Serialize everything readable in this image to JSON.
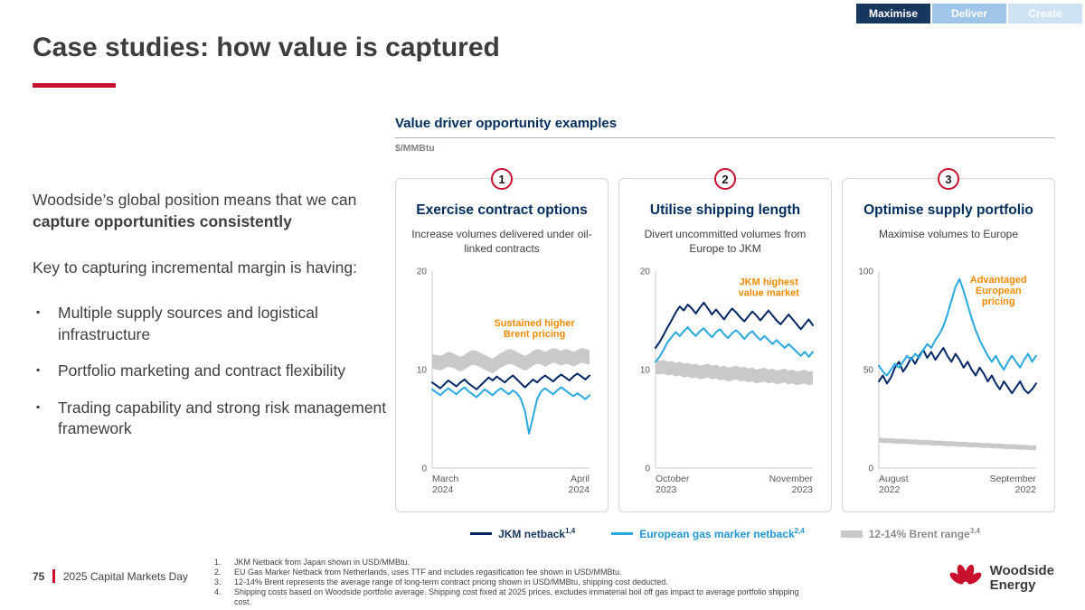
{
  "tabs": [
    {
      "label": "Maximise",
      "active": true
    },
    {
      "label": "Deliver",
      "active": false
    },
    {
      "label": "Create",
      "active": false
    }
  ],
  "title": "Case studies: how value is captured",
  "colors": {
    "accent_red": "#c8102e",
    "navy": "#002664",
    "light_blue": "#29a8e0",
    "band_gray": "#c9c9c9",
    "orange": "#f18a00"
  },
  "left_panel": {
    "intro_normal": "Woodside’s global position means that we can ",
    "intro_bold": "capture opportunities consistently",
    "key_text": "Key to capturing incremental margin is having:",
    "bullet": "▪",
    "bullets": [
      "Multiple supply sources and logistical infrastructure",
      "Portfolio marketing and contract flexibility",
      "Trading capability and strong risk management framework"
    ]
  },
  "right_panel": {
    "heading": "Value driver opportunity examples",
    "unit": "$/MMBtu"
  },
  "chart_data": [
    {
      "type": "line",
      "number": "1",
      "title": "Exercise contract options",
      "subtitle": "Increase volumes delivered under oil-linked contracts",
      "ylim": [
        0,
        20
      ],
      "yticks": [
        0,
        10,
        20
      ],
      "x_labels": [
        "March\n2024",
        "April\n2024"
      ],
      "annotation": {
        "text": "Sustained higher\nBrent pricing",
        "x": 65,
        "y": 28,
        "color": "#f18a00"
      },
      "series": [
        {
          "name": "JKM netback",
          "color": "#002664",
          "width": 2,
          "values": [
            8.7,
            8.4,
            8.1,
            8.5,
            8.9,
            8.6,
            8.3,
            8.7,
            9.0,
            8.6,
            8.3,
            8.0,
            8.4,
            8.8,
            9.2,
            8.9,
            9.3,
            9.0,
            8.7,
            9.1,
            9.4,
            9.0,
            8.6,
            8.2,
            8.6,
            9.0,
            8.7,
            9.1,
            9.4,
            9.1,
            8.8,
            9.2,
            9.5,
            9.2,
            8.9,
            9.3,
            9.6,
            9.3,
            9.0,
            9.4
          ]
        },
        {
          "name": "European gas marker netback",
          "color": "#29a8e0",
          "width": 2,
          "values": [
            8.0,
            7.7,
            7.4,
            7.8,
            8.1,
            7.8,
            7.5,
            7.9,
            8.2,
            7.8,
            7.5,
            7.2,
            7.6,
            8.0,
            7.7,
            7.4,
            7.8,
            8.1,
            7.8,
            7.5,
            7.9,
            7.6,
            7.0,
            5.8,
            3.5,
            5.2,
            7.0,
            7.8,
            8.1,
            7.8,
            7.5,
            7.9,
            8.2,
            7.9,
            7.6,
            7.3,
            7.6,
            7.3,
            7.0,
            7.4
          ]
        }
      ],
      "band": {
        "name": "12-14% Brent range",
        "color": "#c9c9c9",
        "upper": [
          11.6,
          11.5,
          11.4,
          11.6,
          11.8,
          11.7,
          11.5,
          11.3,
          11.5,
          11.8,
          12.0,
          11.9,
          11.7,
          11.5,
          11.3,
          11.1,
          11.4,
          11.7,
          11.9,
          12.1,
          12.0,
          11.8,
          11.6,
          11.4,
          11.6,
          11.9,
          12.1,
          12.0,
          11.8,
          12.0,
          12.2,
          12.1,
          11.9,
          12.1,
          12.0,
          11.8,
          12.0,
          12.2,
          12.1,
          12.0
        ],
        "lower": [
          10.1,
          10.0,
          9.9,
          10.1,
          10.3,
          10.2,
          10.0,
          9.8,
          10.0,
          10.3,
          10.5,
          10.4,
          10.2,
          10.0,
          9.8,
          9.6,
          9.9,
          10.2,
          10.4,
          10.6,
          10.5,
          10.3,
          10.1,
          9.9,
          10.1,
          10.4,
          10.6,
          10.5,
          10.3,
          10.5,
          10.7,
          10.6,
          10.4,
          10.6,
          10.5,
          10.3,
          10.5,
          10.7,
          10.6,
          10.5
        ]
      }
    },
    {
      "type": "line",
      "number": "2",
      "title": "Utilise shipping length",
      "subtitle": "Divert uncommitted volumes from Europe to JKM",
      "ylim": [
        0,
        20
      ],
      "yticks": [
        0,
        10,
        20
      ],
      "x_labels": [
        "October\n2023",
        "November\n2023"
      ],
      "annotation": {
        "text": "JKM highest\nvalue market",
        "x": 72,
        "y": 7,
        "color": "#f18a00"
      },
      "series": [
        {
          "name": "JKM netback",
          "color": "#002664",
          "width": 2,
          "values": [
            12.2,
            12.8,
            13.5,
            14.3,
            15.0,
            15.8,
            16.4,
            16.0,
            16.6,
            16.2,
            15.7,
            16.3,
            16.8,
            16.2,
            15.6,
            16.1,
            15.6,
            15.1,
            15.7,
            16.2,
            15.8,
            15.3,
            14.9,
            15.4,
            15.9,
            15.5,
            15.0,
            15.5,
            16.0,
            15.5,
            15.0,
            14.6,
            15.1,
            15.6,
            15.1,
            14.6,
            14.1,
            14.6,
            15.1,
            14.5
          ]
        },
        {
          "name": "European gas marker netback",
          "color": "#29a8e0",
          "width": 2,
          "values": [
            10.8,
            11.3,
            12.0,
            12.8,
            13.3,
            13.8,
            13.4,
            13.9,
            14.3,
            13.8,
            13.4,
            13.9,
            14.2,
            13.7,
            13.3,
            13.8,
            14.1,
            13.6,
            13.2,
            13.7,
            14.0,
            13.6,
            13.1,
            13.6,
            13.9,
            13.4,
            13.0,
            13.4,
            13.0,
            12.6,
            13.0,
            12.6,
            12.2,
            12.6,
            12.2,
            11.8,
            11.4,
            11.8,
            11.3,
            11.8
          ]
        }
      ],
      "band": {
        "name": "12-14% Brent range",
        "color": "#c9c9c9",
        "upper": [
          11.0,
          10.9,
          11.0,
          10.8,
          10.9,
          10.7,
          10.8,
          10.6,
          10.7,
          10.5,
          10.6,
          10.4,
          10.5,
          10.6,
          10.4,
          10.5,
          10.3,
          10.4,
          10.2,
          10.3,
          10.4,
          10.2,
          10.3,
          10.1,
          10.2,
          10.0,
          10.1,
          10.2,
          10.0,
          10.1,
          9.9,
          10.0,
          10.1,
          9.9,
          10.0,
          9.8,
          9.9,
          10.0,
          9.8,
          9.9
        ],
        "lower": [
          9.6,
          9.5,
          9.6,
          9.4,
          9.5,
          9.3,
          9.4,
          9.2,
          9.3,
          9.1,
          9.2,
          9.0,
          9.1,
          9.2,
          9.0,
          9.1,
          8.9,
          9.0,
          8.8,
          8.9,
          9.0,
          8.8,
          8.9,
          8.7,
          8.8,
          8.6,
          8.7,
          8.8,
          8.6,
          8.7,
          8.5,
          8.6,
          8.7,
          8.5,
          8.6,
          8.4,
          8.5,
          8.6,
          8.4,
          8.5
        ]
      }
    },
    {
      "type": "line",
      "number": "3",
      "title": "Optimise supply portfolio",
      "subtitle": "Maximise volumes to Europe",
      "ylim": [
        0,
        100
      ],
      "yticks": [
        0,
        50,
        100
      ],
      "x_labels": [
        "August\n2022",
        "September\n2022"
      ],
      "annotation": {
        "text": "Advantaged\nEuropean\npricing",
        "x": 76,
        "y": 6,
        "color": "#f18a00"
      },
      "series": [
        {
          "name": "JKM netback",
          "color": "#002664",
          "width": 2,
          "values": [
            44,
            47,
            43,
            46,
            51,
            54,
            49,
            52,
            56,
            53,
            57,
            60,
            56,
            59,
            55,
            58,
            61,
            57,
            54,
            58,
            55,
            51,
            54,
            50,
            47,
            51,
            48,
            44,
            47,
            43,
            40,
            44,
            41,
            38,
            41,
            44,
            40,
            38,
            40,
            43
          ]
        },
        {
          "name": "European gas marker netback",
          "color": "#29a8e0",
          "width": 2,
          "values": [
            52,
            49,
            47,
            50,
            53,
            51,
            54,
            57,
            55,
            58,
            56,
            60,
            63,
            61,
            65,
            68,
            72,
            78,
            85,
            92,
            96,
            90,
            83,
            76,
            70,
            65,
            61,
            57,
            54,
            57,
            53,
            50,
            54,
            57,
            54,
            51,
            55,
            58,
            54,
            57
          ]
        }
      ],
      "band": {
        "name": "12-14% Brent range",
        "color": "#c9c9c9",
        "upper": [
          15.5,
          15.3,
          15.1,
          15.2,
          15.0,
          14.8,
          14.9,
          14.7,
          14.5,
          14.6,
          14.4,
          14.2,
          14.3,
          14.1,
          13.9,
          14.0,
          13.8,
          13.6,
          13.7,
          13.5,
          13.3,
          13.4,
          13.2,
          13.0,
          13.1,
          12.9,
          12.7,
          12.8,
          12.6,
          12.4,
          12.5,
          12.3,
          12.1,
          12.2,
          12.0,
          11.8,
          11.9,
          11.7,
          11.5,
          11.6
        ],
        "lower": [
          13.0,
          12.8,
          12.6,
          12.7,
          12.5,
          12.3,
          12.4,
          12.2,
          12.0,
          12.1,
          11.9,
          11.7,
          11.8,
          11.6,
          11.4,
          11.5,
          11.3,
          11.1,
          11.2,
          11.0,
          10.8,
          10.9,
          10.7,
          10.5,
          10.6,
          10.4,
          10.2,
          10.3,
          10.1,
          9.9,
          10.0,
          9.8,
          9.6,
          9.7,
          9.5,
          9.3,
          9.4,
          9.2,
          9.0,
          9.1
        ]
      }
    }
  ],
  "legend": [
    {
      "label": "JKM netback",
      "sup": "1,4",
      "color": "#002664",
      "swatch": "line"
    },
    {
      "label": "European gas marker netback",
      "sup": "2,4",
      "color": "#29a8e0",
      "swatch": "line"
    },
    {
      "label": "12-14% Brent range",
      "sup": "3,4",
      "color": "#8c8c8c",
      "swatch": "block"
    }
  ],
  "footer": {
    "page": "75",
    "event": "2025 Capital Markets Day",
    "footnotes": [
      {
        "n": "1.",
        "text": "JKM Netback from Japan shown in USD/MMBtu."
      },
      {
        "n": "2.",
        "text": "EU Gas Marker Netback from Netherlands, uses TTF and includes regasification fee shown in USD/MMBtu."
      },
      {
        "n": "3.",
        "text": "12-14% Brent represents the average range of long-term contract pricing shown in USD/MMBtu, shipping cost deducted."
      },
      {
        "n": "4.",
        "text": "Shipping costs based on Woodside portfolio average. Shipping cost fixed at 2025 prices, excludes immaterial boil off gas impact to average portfolio shipping cost."
      }
    ]
  },
  "logo": {
    "line1": "Woodside",
    "line2": "Energy"
  }
}
